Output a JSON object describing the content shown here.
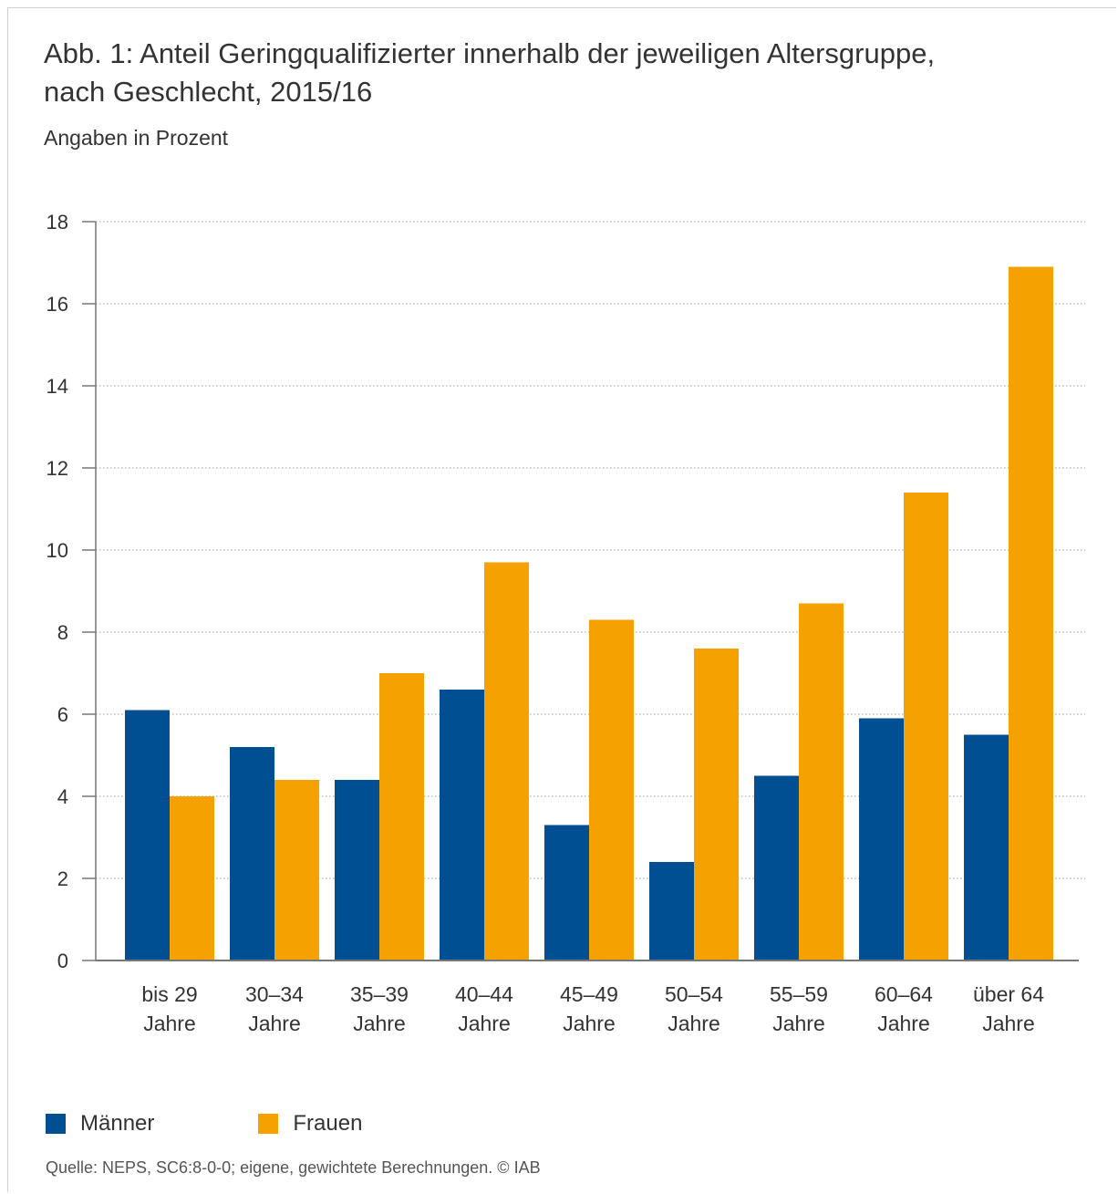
{
  "chart_data": {
    "type": "bar",
    "title_line1": "Abb. 1:  Anteil Geringqualifizierter innerhalb der jeweiligen Altersgruppe,",
    "title_line2": "nach Geschlecht,  2015/16",
    "subtitle": "Angaben in Prozent",
    "categories": [
      [
        "bis 29",
        "Jahre"
      ],
      [
        "30–34",
        "Jahre"
      ],
      [
        "35–39",
        "Jahre"
      ],
      [
        "40–44",
        "Jahre"
      ],
      [
        "45–49",
        "Jahre"
      ],
      [
        "50–54",
        "Jahre"
      ],
      [
        "55–59",
        "Jahre"
      ],
      [
        "60–64",
        "Jahre"
      ],
      [
        "über 64",
        "Jahre"
      ]
    ],
    "series": [
      {
        "name": "Männer",
        "color": "#004f92",
        "values": [
          6.1,
          5.2,
          4.4,
          6.6,
          3.3,
          2.4,
          4.5,
          5.9,
          5.5
        ]
      },
      {
        "name": "Frauen",
        "color": "#f5a100",
        "values": [
          4.0,
          4.4,
          7.0,
          9.7,
          8.3,
          7.6,
          8.7,
          11.4,
          16.9
        ]
      }
    ],
    "yticks": [
      0,
      2,
      4,
      6,
      8,
      10,
      12,
      14,
      16,
      18
    ],
    "ylim": [
      0,
      18
    ],
    "grid": "horizontal dotted",
    "legend_position": "bottom-left",
    "source": "Quelle: NEPS, SC6:8-0-0; eigene, gewichtete Berechnungen. © IAB"
  }
}
